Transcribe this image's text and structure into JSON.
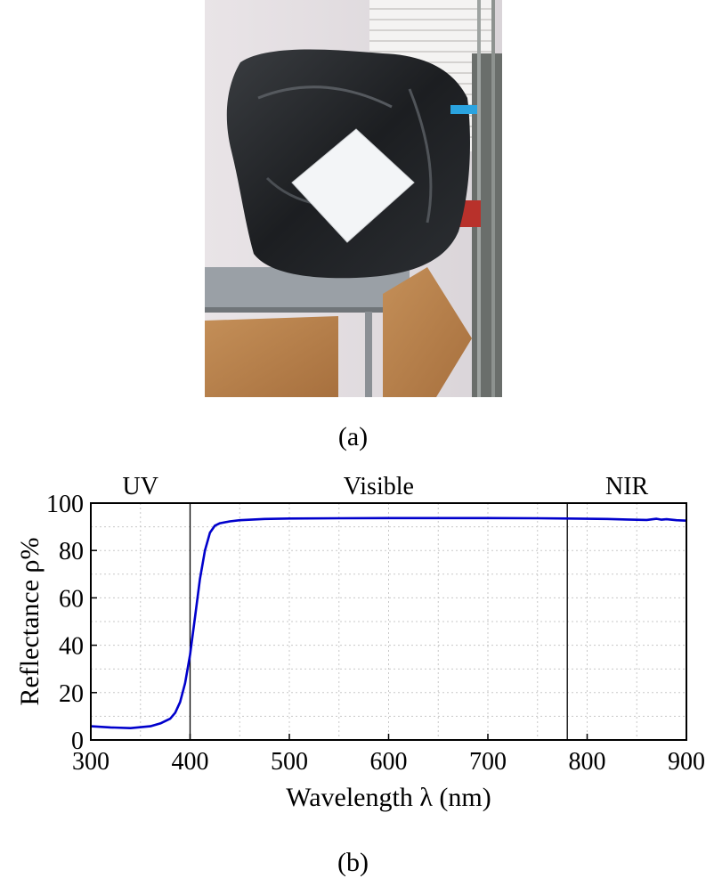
{
  "figure": {
    "caption_a": "(a)",
    "caption_b": "(b)"
  },
  "chart_data": {
    "type": "line",
    "xlabel": "Wavelength λ (nm)",
    "ylabel": "Reflectance ρ%",
    "xlim": [
      300,
      900
    ],
    "ylim": [
      0,
      100
    ],
    "xticks": [
      300,
      400,
      500,
      600,
      700,
      800,
      900
    ],
    "yticks": [
      0,
      20,
      40,
      60,
      80,
      100
    ],
    "grid": true,
    "regions": [
      {
        "label": "UV",
        "from": 300,
        "to": 400
      },
      {
        "label": "Visible",
        "from": 400,
        "to": 780
      },
      {
        "label": "NIR",
        "from": 780,
        "to": 900
      }
    ],
    "region_boundaries": [
      400,
      780
    ],
    "line_color": "#0000cc",
    "series": [
      {
        "x": [
          300,
          320,
          340,
          360,
          370,
          380,
          385,
          390,
          395,
          400,
          405,
          410,
          415,
          420,
          425,
          430,
          440,
          450,
          475,
          500,
          550,
          600,
          650,
          700,
          750,
          780,
          800,
          820,
          840,
          860,
          870,
          875,
          880,
          890,
          900
        ],
        "y": [
          5.8,
          5.3,
          5.0,
          5.8,
          7.0,
          9.0,
          11.5,
          16.0,
          24.0,
          36.0,
          52.0,
          68.0,
          80.0,
          87.5,
          90.5,
          91.5,
          92.3,
          92.8,
          93.3,
          93.5,
          93.6,
          93.7,
          93.7,
          93.7,
          93.6,
          93.5,
          93.4,
          93.3,
          93.1,
          92.9,
          93.4,
          93.0,
          93.2,
          92.8,
          92.6
        ]
      }
    ]
  }
}
